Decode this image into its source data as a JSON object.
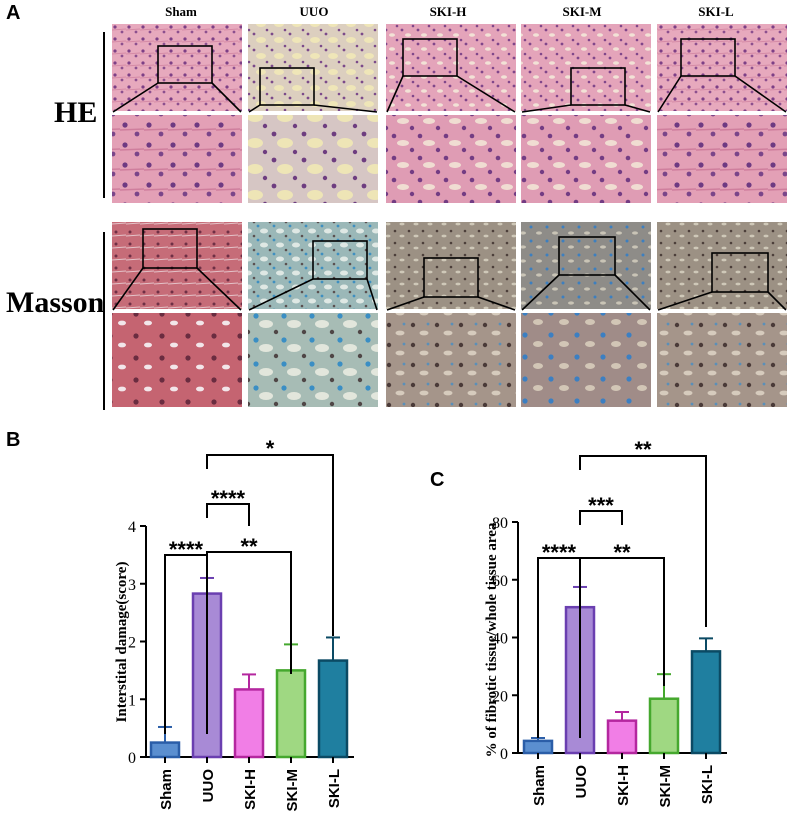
{
  "panel_a": {
    "letter": "A",
    "columns": [
      "Sham",
      "UUO",
      "SKI-H",
      "SKI-M",
      "SKI-L"
    ],
    "rows": [
      "HE",
      "Masson"
    ],
    "stain_colors": {
      "he_base": "#e6a8bc",
      "he_dark": "#8c4f8e",
      "uuo_he_base": "#d9cfc0",
      "masson_sham": "#c8707a",
      "masson_blue": "#5aa8c8",
      "masson_gray": "#9c8f80"
    }
  },
  "chart_data": [
    {
      "panel_letter": "B",
      "type": "bar",
      "categories": [
        "Sham",
        "UUO",
        "SKI-H",
        "SKI-M",
        "SKI-L"
      ],
      "values": [
        0.25,
        2.83,
        1.17,
        1.5,
        1.67
      ],
      "errors": [
        0.27,
        0.27,
        0.26,
        0.45,
        0.4
      ],
      "ylabel": "Interstital damage(score)",
      "ylim": [
        0,
        4
      ],
      "yticks": [
        "0",
        "1",
        "2",
        "3",
        "4"
      ],
      "significance": [
        {
          "from": 0,
          "to": 1,
          "label": "****"
        },
        {
          "from": 1,
          "to": 2,
          "label": "****"
        },
        {
          "from": 1,
          "to": 3,
          "label": "**"
        },
        {
          "from": 1,
          "to": 4,
          "label": "*"
        }
      ]
    },
    {
      "panel_letter": "C",
      "type": "bar",
      "categories": [
        "Sham",
        "UUO",
        "SKI-H",
        "SKI-M",
        "SKI-L"
      ],
      "values": [
        4.2,
        50.5,
        11.2,
        18.8,
        35.2
      ],
      "errors": [
        1.0,
        7.0,
        3.0,
        8.5,
        4.5
      ],
      "ylabel": "% of fibrotic tissue/whole tissue area",
      "ylim": [
        0,
        80
      ],
      "yticks": [
        "0",
        "20",
        "40",
        "60",
        "80"
      ],
      "significance": [
        {
          "from": 0,
          "to": 1,
          "label": "****"
        },
        {
          "from": 1,
          "to": 2,
          "label": "***"
        },
        {
          "from": 1,
          "to": 3,
          "label": "**"
        },
        {
          "from": 1,
          "to": 4,
          "label": "**"
        }
      ]
    }
  ],
  "bar_colors": [
    {
      "fill": "#5b8fd0",
      "stroke": "#2b5ea8"
    },
    {
      "fill": "#a88ad6",
      "stroke": "#6a3fb0"
    },
    {
      "fill": "#f17ee6",
      "stroke": "#b4279f"
    },
    {
      "fill": "#9fd882",
      "stroke": "#45a82e"
    },
    {
      "fill": "#1f7fa0",
      "stroke": "#0b4a64"
    }
  ]
}
